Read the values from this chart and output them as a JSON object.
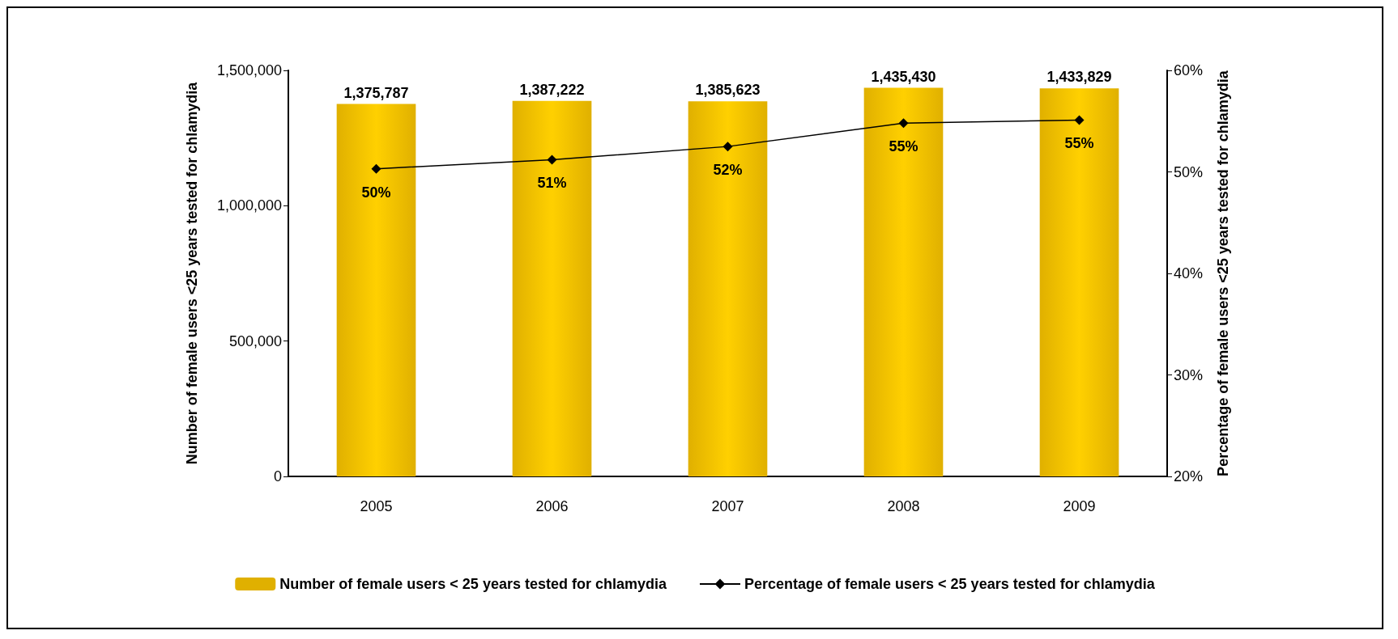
{
  "chart_data": {
    "type": "bar",
    "categories": [
      "2005",
      "2006",
      "2007",
      "2008",
      "2009"
    ],
    "ylabel": "Number of female users <25 years tested for chlamydia",
    "y2label": "Percentage of female users <25 years tested for chlamydia",
    "ylim": [
      0,
      1500000
    ],
    "yticks": [
      {
        "value": 0,
        "label": "0"
      },
      {
        "value": 500000,
        "label": "500,000"
      },
      {
        "value": 1000000,
        "label": "1,000,000"
      },
      {
        "value": 1500000,
        "label": "1,500,000"
      }
    ],
    "y2lim": [
      20,
      60
    ],
    "y2ticks": [
      {
        "value": 20,
        "label": "20%"
      },
      {
        "value": 30,
        "label": "30%"
      },
      {
        "value": 40,
        "label": "40%"
      },
      {
        "value": 50,
        "label": "50%"
      },
      {
        "value": 60,
        "label": "60%"
      }
    ],
    "series": [
      {
        "name": "Number of female users < 25 years tested for chlamydia",
        "color": "#e0b000",
        "values": [
          1375787,
          1387222,
          1385623,
          1435430,
          1433829
        ],
        "value_labels": [
          "1,375,787",
          "1,387,222",
          "1,385,623",
          "1,435,430",
          "1,433,829"
        ]
      },
      {
        "name": "Percentage of female users < 25 years tested for chlamydia",
        "type": "line",
        "axis": "y2",
        "color": "#000000",
        "marker": "diamond",
        "values": [
          50.3,
          51.2,
          52.5,
          54.8,
          55.1
        ],
        "value_labels": [
          "50%",
          "51%",
          "52%",
          "55%",
          "55%"
        ]
      }
    ],
    "grid": false,
    "legend": "bottom"
  }
}
